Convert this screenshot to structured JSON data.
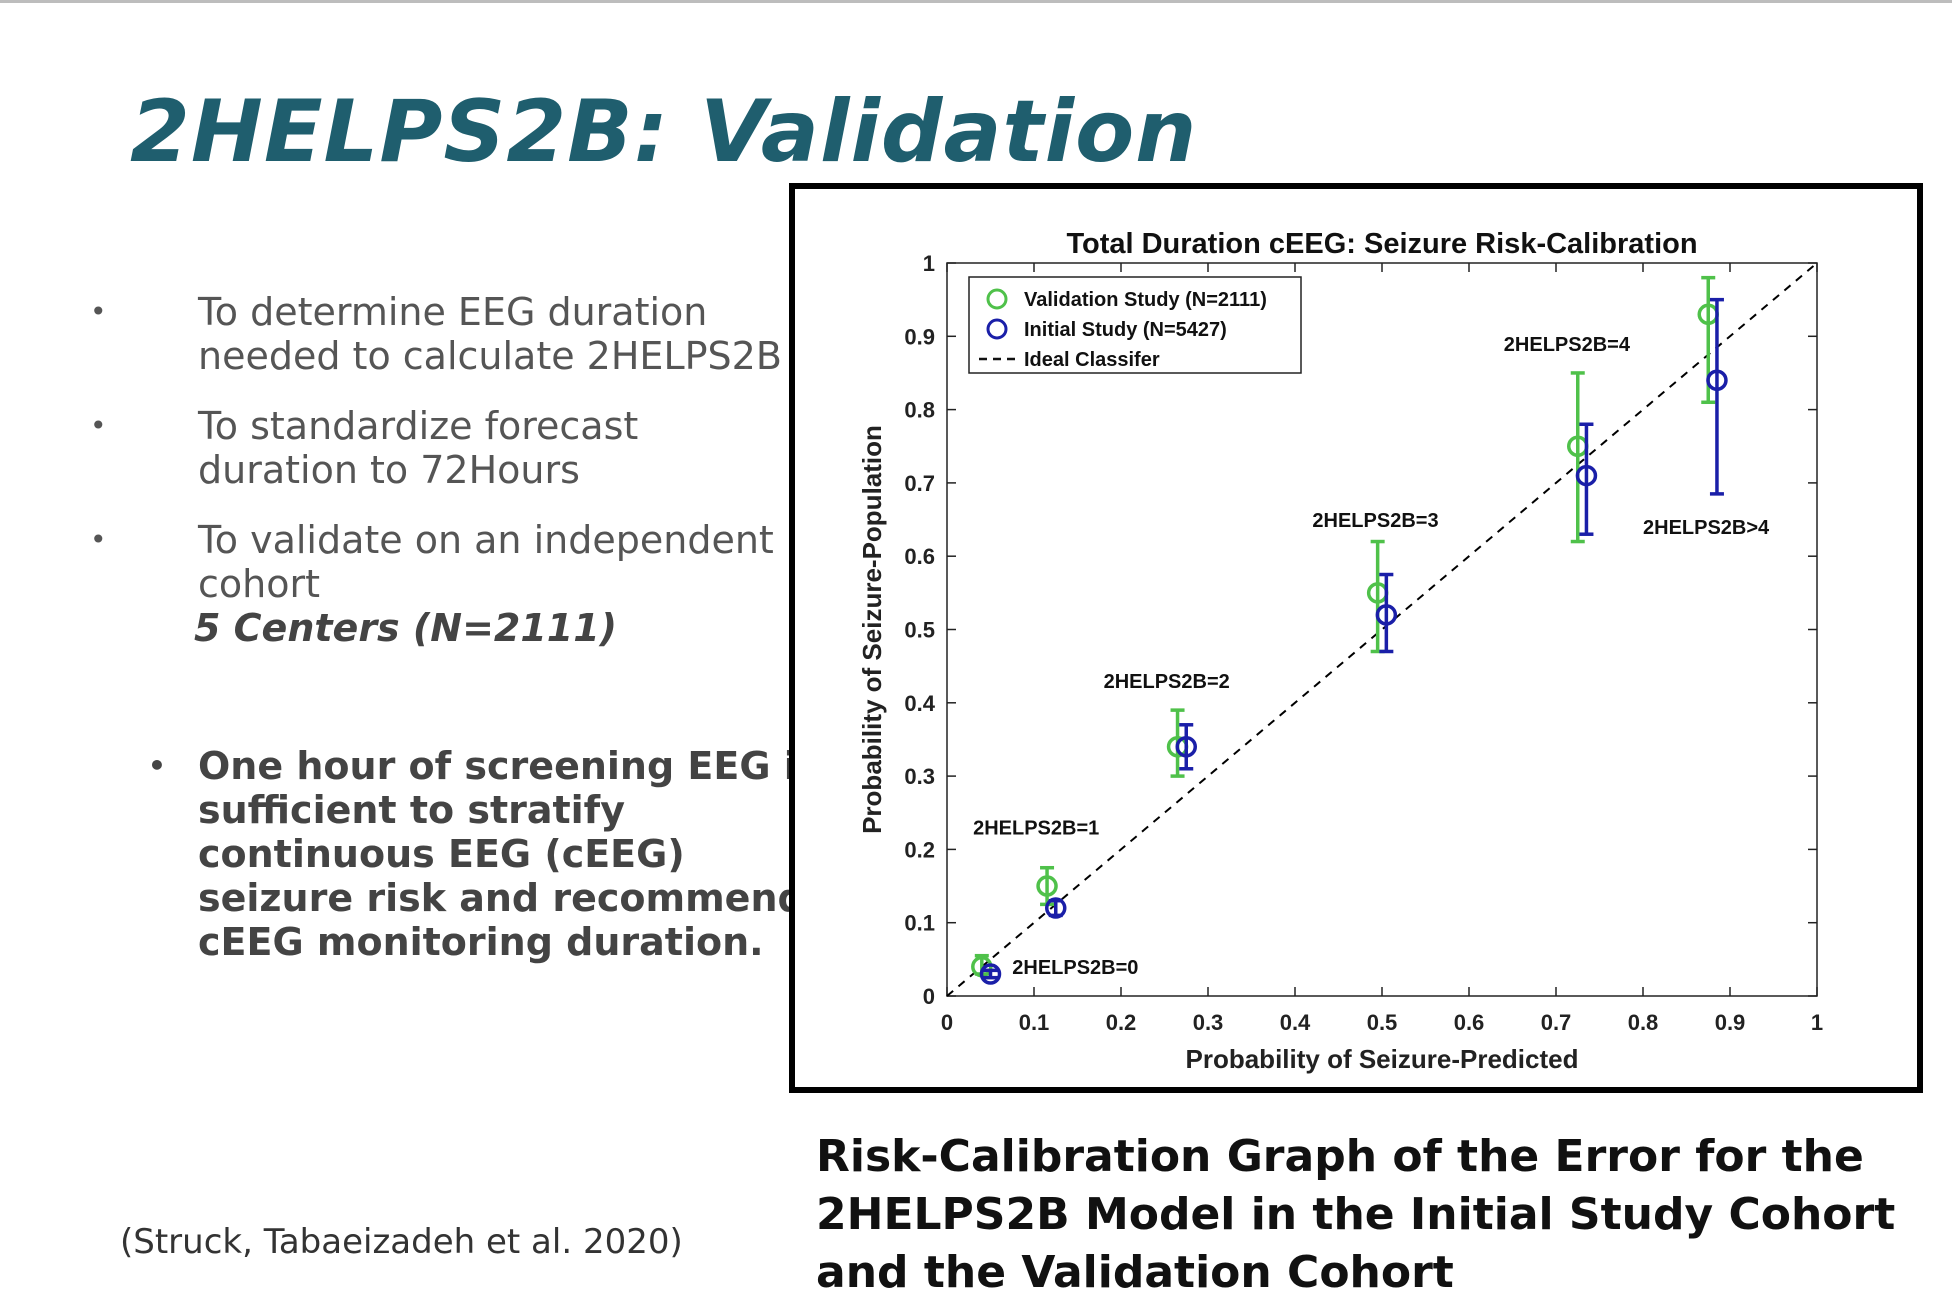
{
  "slide": {
    "title": "2HELPS2B: Validation",
    "bullets": [
      {
        "text": "To determine EEG duration needed to calculate 2HELPS2B"
      },
      {
        "text": "To standardize forecast duration to 72Hours"
      },
      {
        "text": "To validate on an independent cohort",
        "emphasis": "5 Centers (N=2111)"
      }
    ],
    "bullet_marker": "•",
    "conclusion": "One hour of screening EEG is sufficient to stratify continuous EEG (cEEG) seizure risk and recommend cEEG monitoring duration.",
    "citation": "(Struck, Tabaeizadeh et al. 2020)",
    "caption": "Risk-Calibration Graph of the Error for the 2HELPS2B Model in the Initial Study Cohort and the Validation Cohort"
  },
  "colors": {
    "title": "#1f5e6e",
    "validation": "#4fc14a",
    "initial": "#1a1fa8",
    "ideal": "#000000"
  },
  "chart_data": {
    "type": "scatter",
    "title": "Total Duration cEEG: Seizure Risk-Calibration",
    "xlabel": "Probability of Seizure-Predicted",
    "ylabel": "Probability of Seizure-Population",
    "xlim": [
      0,
      1
    ],
    "ylim": [
      0,
      1
    ],
    "xticks": [
      "0",
      "0.1",
      "0.2",
      "0.3",
      "0.4",
      "0.5",
      "0.6",
      "0.7",
      "0.8",
      "0.9",
      "1"
    ],
    "yticks": [
      "0",
      "0.1",
      "0.2",
      "0.3",
      "0.4",
      "0.5",
      "0.6",
      "0.7",
      "0.8",
      "0.9",
      "1"
    ],
    "legend_position": "top-left",
    "series": [
      {
        "name": "Validation Study (N=2111)",
        "marker": "circle",
        "color": "#4fc14a",
        "points": [
          {
            "x": 0.04,
            "y": 0.04,
            "lo": 0.03,
            "hi": 0.055
          },
          {
            "x": 0.115,
            "y": 0.15,
            "lo": 0.125,
            "hi": 0.175
          },
          {
            "x": 0.265,
            "y": 0.34,
            "lo": 0.3,
            "hi": 0.39
          },
          {
            "x": 0.495,
            "y": 0.55,
            "lo": 0.47,
            "hi": 0.62
          },
          {
            "x": 0.725,
            "y": 0.75,
            "lo": 0.62,
            "hi": 0.85
          },
          {
            "x": 0.875,
            "y": 0.93,
            "lo": 0.81,
            "hi": 0.98
          }
        ]
      },
      {
        "name": "Initial Study (N=5427)",
        "marker": "circle",
        "color": "#1a1fa8",
        "points": [
          {
            "x": 0.05,
            "y": 0.03,
            "lo": 0.025,
            "hi": 0.035
          },
          {
            "x": 0.125,
            "y": 0.12,
            "lo": 0.11,
            "hi": 0.13
          },
          {
            "x": 0.275,
            "y": 0.34,
            "lo": 0.31,
            "hi": 0.37
          },
          {
            "x": 0.505,
            "y": 0.52,
            "lo": 0.47,
            "hi": 0.575
          },
          {
            "x": 0.735,
            "y": 0.71,
            "lo": 0.63,
            "hi": 0.78
          },
          {
            "x": 0.885,
            "y": 0.84,
            "lo": 0.685,
            "hi": 0.95
          }
        ]
      }
    ],
    "ideal_line": {
      "name": "Ideal Classifer",
      "from": [
        0,
        0
      ],
      "to": [
        1,
        1
      ],
      "style": "dashed"
    },
    "annotations": [
      {
        "text": "2HELPS2B=0",
        "x": 0.075,
        "y": 0.03
      },
      {
        "text": "2HELPS2B=1",
        "x": 0.03,
        "y": 0.22
      },
      {
        "text": "2HELPS2B=2",
        "x": 0.18,
        "y": 0.42
      },
      {
        "text": "2HELPS2B=3",
        "x": 0.42,
        "y": 0.64
      },
      {
        "text": "2HELPS2B=4",
        "x": 0.64,
        "y": 0.88
      },
      {
        "text": "2HELPS2B>4",
        "x": 0.8,
        "y": 0.63
      }
    ]
  }
}
